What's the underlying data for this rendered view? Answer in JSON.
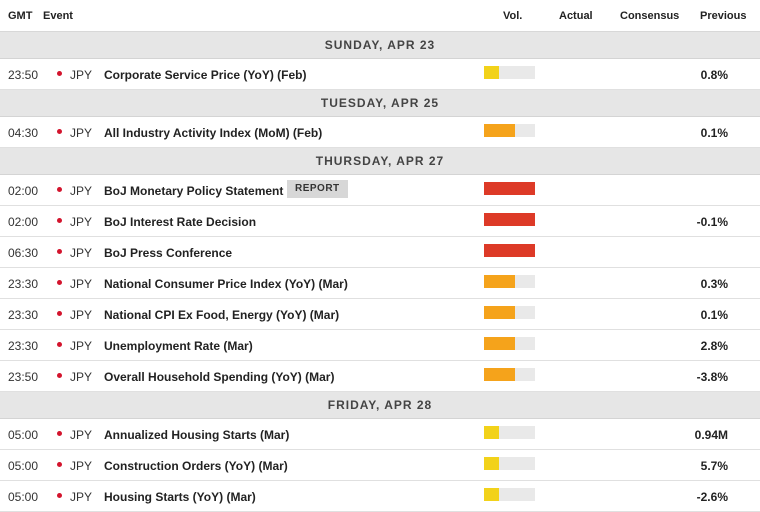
{
  "header": {
    "gmt": "GMT",
    "event": "Event",
    "vol": "Vol.",
    "actual": "Actual",
    "consensus": "Consensus",
    "previous": "Previous"
  },
  "colors": {
    "low": "#f2d21a",
    "medium": "#f5a31b",
    "high": "#dd3a27"
  },
  "days": [
    {
      "label": "SUNDAY, APR 23",
      "events": [
        {
          "time": "23:50",
          "currency": "JPY",
          "name": "Corporate Service Price (YoY) (Feb)",
          "volatility": "low",
          "level": 0.3,
          "actual": "",
          "consensus": "",
          "previous": "0.8%"
        }
      ]
    },
    {
      "label": "TUESDAY, APR 25",
      "events": [
        {
          "time": "04:30",
          "currency": "JPY",
          "name": "All Industry Activity Index (MoM) (Feb)",
          "volatility": "medium",
          "level": 0.6,
          "actual": "",
          "consensus": "",
          "previous": "0.1%"
        }
      ]
    },
    {
      "label": "THURSDAY, APR 27",
      "events": [
        {
          "time": "02:00",
          "currency": "JPY",
          "name": "BoJ Monetary Policy Statement",
          "badge": "REPORT",
          "volatility": "high",
          "level": 1.0,
          "actual": "",
          "consensus": "",
          "previous": ""
        },
        {
          "time": "02:00",
          "currency": "JPY",
          "name": "BoJ Interest Rate Decision",
          "volatility": "high",
          "level": 1.0,
          "actual": "",
          "consensus": "",
          "previous": "-0.1%"
        },
        {
          "time": "06:30",
          "currency": "JPY",
          "name": "BoJ Press Conference",
          "volatility": "high",
          "level": 1.0,
          "actual": "",
          "consensus": "",
          "previous": ""
        },
        {
          "time": "23:30",
          "currency": "JPY",
          "name": "National Consumer Price Index (YoY) (Mar)",
          "volatility": "medium",
          "level": 0.6,
          "actual": "",
          "consensus": "",
          "previous": "0.3%"
        },
        {
          "time": "23:30",
          "currency": "JPY",
          "name": "National CPI Ex Food, Energy (YoY) (Mar)",
          "volatility": "medium",
          "level": 0.6,
          "actual": "",
          "consensus": "",
          "previous": "0.1%"
        },
        {
          "time": "23:30",
          "currency": "JPY",
          "name": "Unemployment Rate (Mar)",
          "volatility": "medium",
          "level": 0.6,
          "actual": "",
          "consensus": "",
          "previous": "2.8%"
        },
        {
          "time": "23:50",
          "currency": "JPY",
          "name": "Overall Household Spending (YoY) (Mar)",
          "volatility": "medium",
          "level": 0.6,
          "actual": "",
          "consensus": "",
          "previous": "-3.8%"
        }
      ]
    },
    {
      "label": "FRIDAY, APR 28",
      "events": [
        {
          "time": "05:00",
          "currency": "JPY",
          "name": "Annualized Housing Starts (Mar)",
          "volatility": "low",
          "level": 0.3,
          "actual": "",
          "consensus": "",
          "previous": "0.94M"
        },
        {
          "time": "05:00",
          "currency": "JPY",
          "name": "Construction Orders (YoY) (Mar)",
          "volatility": "low",
          "level": 0.3,
          "actual": "",
          "consensus": "",
          "previous": "5.7%"
        },
        {
          "time": "05:00",
          "currency": "JPY",
          "name": "Housing Starts (YoY) (Mar)",
          "volatility": "low",
          "level": 0.3,
          "actual": "",
          "consensus": "",
          "previous": "-2.6%"
        }
      ]
    }
  ]
}
